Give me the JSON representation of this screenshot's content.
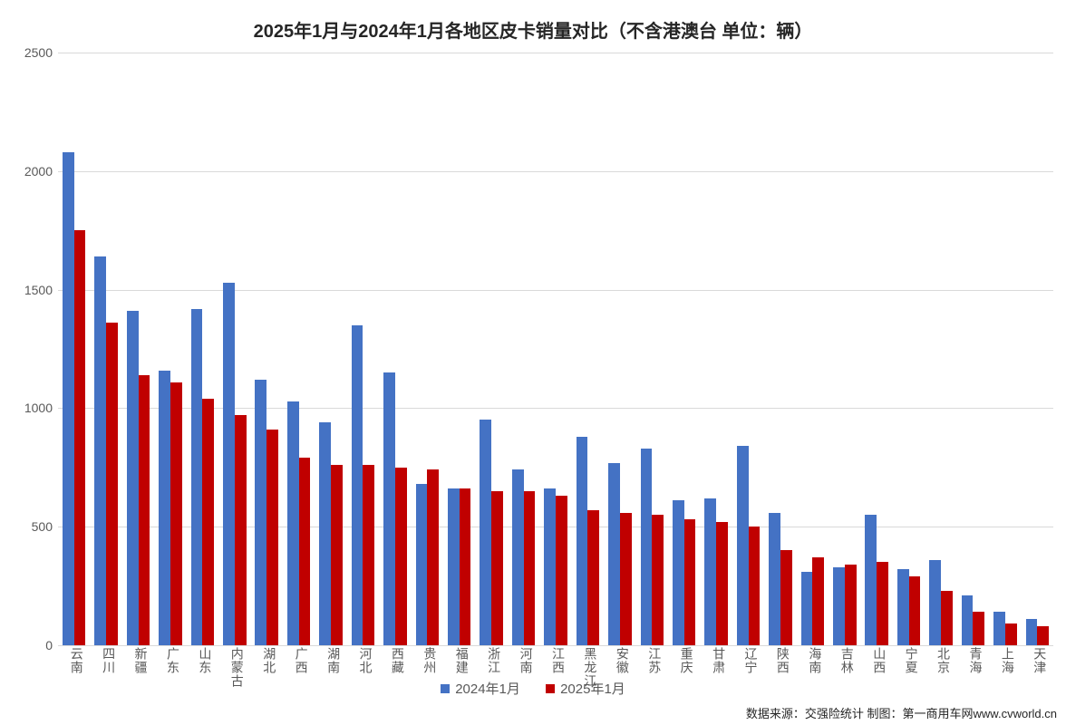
{
  "chart": {
    "type": "grouped-bar",
    "title": "2025年1月与2024年1月各地区皮卡销量对比（不含港澳台 单位：辆）",
    "title_fontsize": 20,
    "title_color": "#262626",
    "background_color": "#ffffff",
    "grid_color": "#d9d9d9",
    "ylim": [
      0,
      2500
    ],
    "ytick_step": 500,
    "yticks": [
      0,
      500,
      1000,
      1500,
      2000,
      2500
    ],
    "ytick_fontsize": 14,
    "ytick_color": "#595959",
    "xlabel_fontsize": 14,
    "xlabel_color": "#595959",
    "bar_group_gap_ratio": 0.28,
    "series": [
      {
        "name": "2024年1月",
        "color": "#4472c4"
      },
      {
        "name": "2025年1月",
        "color": "#c00000"
      }
    ],
    "categories": [
      "云南",
      "四川",
      "新疆",
      "广东",
      "山东",
      "内蒙古",
      "湖北",
      "广西",
      "湖南",
      "河北",
      "西藏",
      "贵州",
      "福建",
      "浙江",
      "河南",
      "江西",
      "黑龙江",
      "安徽",
      "江苏",
      "重庆",
      "甘肃",
      "辽宁",
      "陕西",
      "海南",
      "吉林",
      "山西",
      "宁夏",
      "北京",
      "青海",
      "上海",
      "天津"
    ],
    "values_2024": [
      2080,
      1640,
      1410,
      1160,
      1420,
      1530,
      1120,
      1030,
      940,
      1350,
      1150,
      680,
      660,
      950,
      740,
      660,
      880,
      770,
      830,
      610,
      620,
      840,
      560,
      310,
      330,
      550,
      320,
      360,
      210,
      140,
      110
    ],
    "values_2025": [
      1750,
      1360,
      1140,
      1110,
      1040,
      970,
      910,
      790,
      760,
      760,
      750,
      740,
      660,
      650,
      650,
      630,
      570,
      560,
      550,
      530,
      520,
      500,
      400,
      370,
      340,
      350,
      290,
      230,
      140,
      90,
      80
    ],
    "legend_fontsize": 15,
    "legend_color": "#595959",
    "source_text": "数据来源：交强险统计 制图：第一商用车网www.cvworld.cn",
    "source_fontsize": 13,
    "source_color": "#262626"
  }
}
